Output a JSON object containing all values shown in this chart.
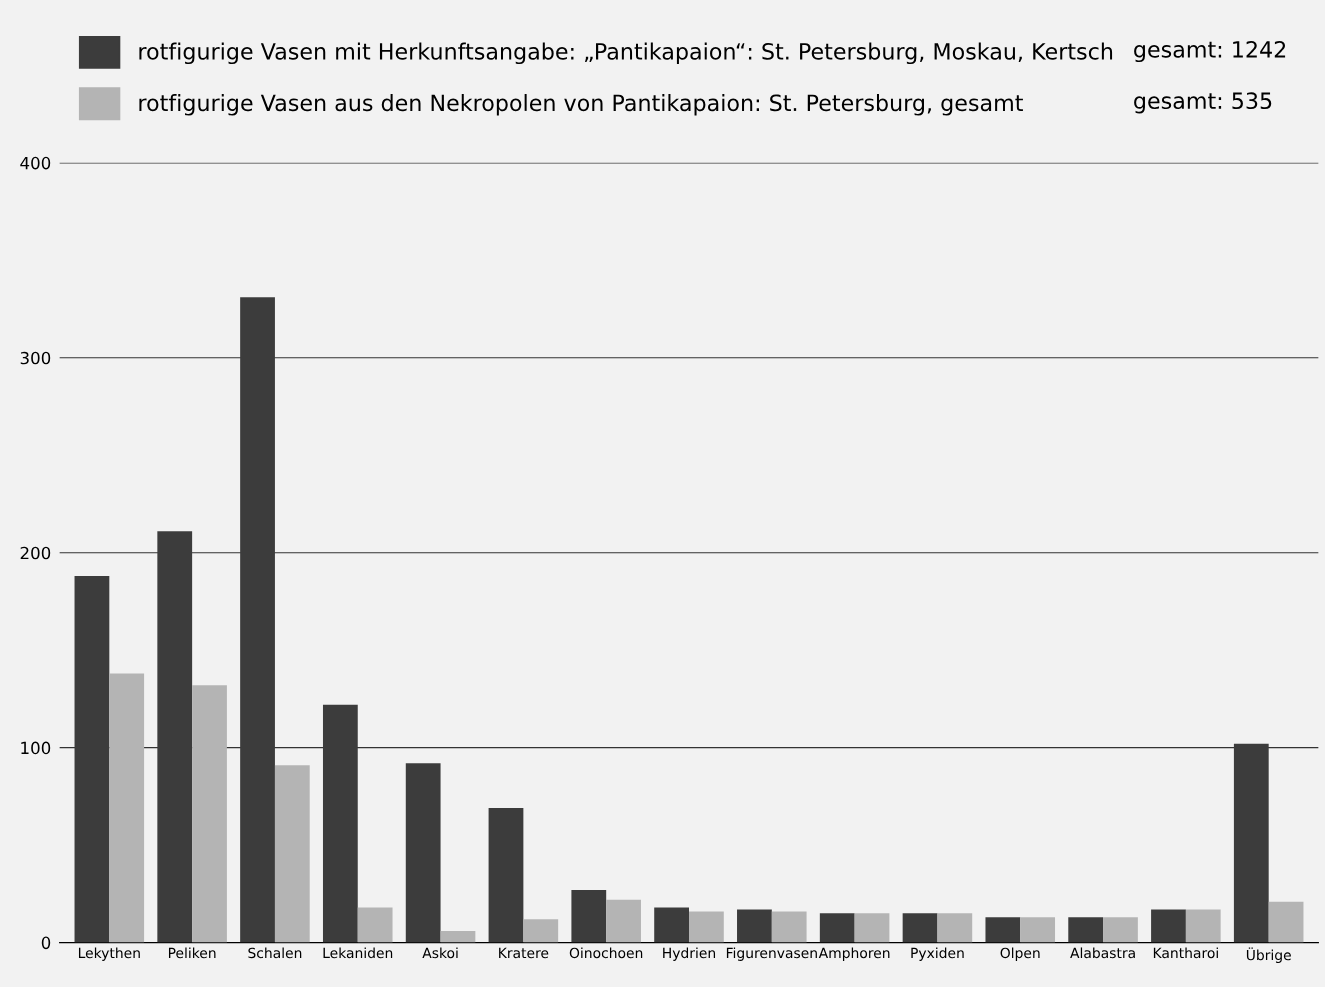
{
  "chart_data": {
    "type": "bar",
    "categories": [
      "Lekythen",
      "Peliken",
      "Schalen",
      "Lekaniden",
      "Askoi",
      "Kratere",
      "Oinochoen",
      "Hydrien",
      "Figurenvasen",
      "Amphoren",
      "Pyxiden",
      "Olpen",
      "Alabastra",
      "Kantharoi",
      "Übrige"
    ],
    "series": [
      {
        "name": "rotfigurige Vasen mit Herkunftsangabe: „Pantikapaion“: St. Petersburg, Moskau, Kertsch",
        "color": "#3c3c3c",
        "values": [
          188,
          211,
          331,
          122,
          92,
          69,
          27,
          18,
          17,
          15,
          15,
          13,
          13,
          17,
          102
        ]
      },
      {
        "name": "rotfigurige Vasen aus den Nekropolen von Pantikapaion: St. Petersburg, gesamt",
        "color": "#b4b4b4",
        "values": [
          138,
          132,
          91,
          18,
          6,
          12,
          22,
          16,
          16,
          15,
          15,
          13,
          13,
          17,
          21
        ]
      }
    ],
    "annotations": [
      "gesamt: 1242",
      "gesamt: 535"
    ],
    "ylim": [
      0,
      400
    ],
    "yticks": [
      0,
      100,
      200,
      300,
      400
    ],
    "grid": "y",
    "legend": "top"
  }
}
